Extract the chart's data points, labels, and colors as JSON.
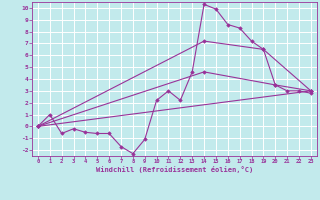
{
  "xlabel": "Windchill (Refroidissement éolien,°C)",
  "bg_color": "#c2eaec",
  "grid_color": "#ffffff",
  "line_color": "#993399",
  "xlim": [
    -0.5,
    23.5
  ],
  "ylim": [
    -2.5,
    10.5
  ],
  "xticks": [
    0,
    1,
    2,
    3,
    4,
    5,
    6,
    7,
    8,
    9,
    10,
    11,
    12,
    13,
    14,
    15,
    16,
    17,
    18,
    19,
    20,
    21,
    22,
    23
  ],
  "yticks": [
    -2,
    -1,
    0,
    1,
    2,
    3,
    4,
    5,
    6,
    7,
    8,
    9,
    10
  ],
  "series1_x": [
    0,
    1,
    2,
    3,
    4,
    5,
    6,
    7,
    8,
    9,
    10,
    11,
    12,
    13,
    14,
    15,
    16,
    17,
    18,
    19,
    20,
    21,
    22,
    23
  ],
  "series1_y": [
    0.0,
    1.0,
    -0.6,
    -0.2,
    -0.5,
    -0.6,
    -0.6,
    -1.7,
    -2.3,
    -1.1,
    2.2,
    3.0,
    2.2,
    4.6,
    10.3,
    9.9,
    8.6,
    8.3,
    7.2,
    6.5,
    3.5,
    3.0,
    3.0,
    2.8
  ],
  "series2_x": [
    0,
    14,
    19,
    23
  ],
  "series2_y": [
    0.0,
    7.2,
    6.5,
    3.0
  ],
  "series3_x": [
    0,
    14,
    20,
    23
  ],
  "series3_y": [
    0.0,
    4.6,
    3.5,
    3.0
  ],
  "series4_x": [
    0,
    23
  ],
  "series4_y": [
    0.0,
    3.0
  ]
}
